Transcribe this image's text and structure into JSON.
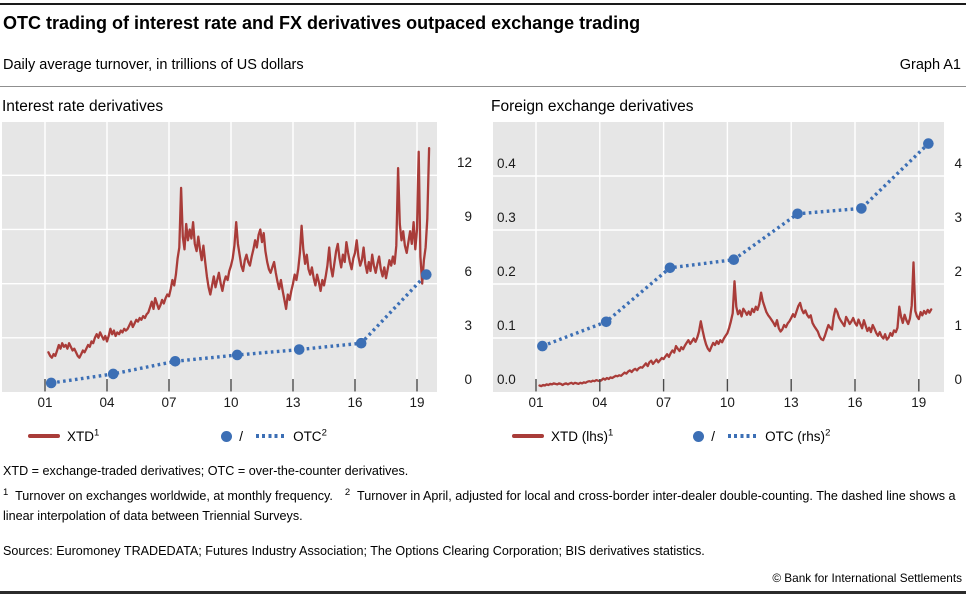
{
  "header": {
    "title": "OTC trading of interest rate and FX derivatives outpaced exchange trading",
    "subtitle": "Daily average turnover, in trillions of US dollars",
    "graph_label": "Graph A1"
  },
  "colors": {
    "red": "#a93c39",
    "blue": "#3c6fb5",
    "plot_bg": "#e6e6e6",
    "grid": "#ffffff",
    "tick": "#4a4a4a"
  },
  "panels": [
    {
      "title": "Interest rate derivatives",
      "legend": {
        "xtd_text": "XTD",
        "xtd_sup": "1",
        "sep": "/",
        "otc_text": "OTC",
        "otc_sup": "2"
      }
    },
    {
      "title": "Foreign exchange derivatives",
      "legend": {
        "xtd_text": "XTD (lhs)",
        "xtd_sup": "1",
        "sep": "/",
        "otc_text": "OTC (rhs)",
        "otc_sup": "2"
      }
    }
  ],
  "footnotes": {
    "abbrev": "XTD = exchange-traded derivatives; OTC = over-the-counter derivatives.",
    "fn1_sup": "1",
    "fn1_text": "Turnover on exchanges worldwide, at monthly frequency.",
    "fn2_sup": "2",
    "fn2_text": "Turnover in April, adjusted for local and cross-border inter-dealer double-counting. The dashed line shows a linear interpolation of data between Triennial Surveys.",
    "sources": "Sources: Euromoney TRADEDATA; Futures Industry Association; The Options Clearing Corporation; BIS derivatives statistics."
  },
  "copyright": "© Bank for International Settlements",
  "chart_data": [
    {
      "type": "line",
      "title": "Interest rate derivatives",
      "ylabel": "USD trillions, daily average turnover",
      "x_ticks": [
        "01",
        "04",
        "07",
        "10",
        "13",
        "16",
        "19"
      ],
      "x_tick_years": [
        2001,
        2004,
        2007,
        2010,
        2013,
        2016,
        2019
      ],
      "x_range": [
        1998.9,
        2020.0
      ],
      "grid": true,
      "y_axis": {
        "side": "right",
        "ticks": [
          0,
          3,
          6,
          9,
          12
        ],
        "tick_labels": [
          "0",
          "3",
          "6",
          "9",
          "12"
        ],
        "lim": [
          0,
          14.95
        ]
      },
      "series": [
        {
          "name": "XTD",
          "style": "solid-line",
          "color": "#a93c39",
          "frequency": "monthly",
          "start_year": 2001.1667,
          "step": 0.083333,
          "values": [
            2.2,
            2.0,
            1.9,
            2.1,
            2.0,
            2.3,
            2.6,
            2.4,
            2.7,
            2.5,
            2.6,
            2.4,
            2.7,
            2.5,
            2.3,
            2.4,
            2.2,
            2.0,
            1.9,
            2.1,
            2.3,
            2.2,
            2.4,
            2.6,
            2.5,
            2.8,
            2.7,
            3.0,
            3.2,
            3.0,
            3.3,
            3.1,
            2.9,
            3.1,
            2.8,
            3.1,
            3.5,
            3.2,
            3.4,
            3.1,
            3.3,
            3.2,
            3.4,
            3.3,
            3.5,
            3.4,
            3.5,
            3.7,
            3.9,
            3.6,
            3.8,
            4.0,
            3.9,
            4.1,
            4.0,
            4.2,
            4.1,
            4.3,
            4.4,
            4.7,
            5.0,
            4.6,
            5.2,
            4.9,
            4.6,
            4.8,
            5.1,
            4.9,
            5.2,
            5.4,
            5.3,
            5.7,
            6.2,
            5.9,
            6.5,
            7.4,
            8.0,
            11.3,
            8.6,
            7.9,
            9.3,
            8.4,
            9.0,
            8.5,
            9.4,
            8.2,
            7.8,
            8.6,
            7.9,
            7.3,
            8.1,
            7.2,
            6.4,
            5.8,
            5.4,
            5.9,
            6.4,
            5.8,
            6.2,
            6.6,
            6.0,
            5.6,
            6.1,
            6.4,
            6.2,
            6.7,
            7.0,
            7.4,
            8.1,
            9.4,
            8.2,
            7.6,
            7.0,
            6.7,
            7.3,
            7.6,
            7.2,
            7.0,
            7.5,
            7.9,
            8.4,
            8.0,
            8.7,
            9.0,
            8.3,
            8.8,
            7.8,
            7.2,
            6.8,
            6.6,
            6.9,
            7.2,
            6.6,
            6.1,
            5.7,
            6.2,
            5.6,
            5.1,
            4.6,
            5.4,
            5.1,
            5.6,
            6.0,
            6.5,
            6.2,
            6.8,
            7.7,
            9.2,
            7.9,
            7.1,
            7.6,
            6.8,
            6.5,
            6.9,
            6.3,
            5.9,
            6.5,
            6.1,
            5.6,
            6.2,
            5.9,
            6.4,
            7.0,
            8.0,
            6.9,
            6.4,
            7.1,
            7.8,
            8.2,
            7.4,
            6.9,
            7.6,
            7.2,
            8.3,
            7.7,
            7.2,
            6.8,
            7.4,
            7.7,
            8.4,
            7.5,
            7.0,
            7.3,
            8.0,
            7.1,
            6.6,
            7.2,
            6.7,
            7.6,
            7.0,
            6.6,
            7.1,
            7.5,
            6.8,
            6.4,
            6.9,
            6.3,
            6.8,
            7.3,
            7.0,
            7.5,
            7.1,
            8.1,
            12.4,
            9.3,
            8.4,
            8.9,
            8.1,
            7.7,
            8.3,
            8.9,
            8.2,
            9.4,
            7.9,
            9.0,
            13.3,
            7.5,
            6.0,
            7.3,
            8.0,
            9.6,
            13.5
          ]
        },
        {
          "name": "OTC",
          "style": "dotted-line-markers",
          "color": "#3c6fb5",
          "survey_years": [
            "2001",
            "2004",
            "2007",
            "2010",
            "2013",
            "2016",
            "2019"
          ],
          "x": [
            2001.3,
            2004.3,
            2007.3,
            2010.3,
            2013.3,
            2016.3,
            2019.45
          ],
          "values": [
            0.5,
            1.0,
            1.7,
            2.05,
            2.35,
            2.7,
            6.5
          ]
        }
      ]
    },
    {
      "type": "line",
      "title": "Foreign exchange derivatives",
      "ylabel": "USD trillions, daily average turnover",
      "x_ticks": [
        "01",
        "04",
        "07",
        "10",
        "13",
        "16",
        "19"
      ],
      "x_tick_years": [
        2001,
        2004,
        2007,
        2010,
        2013,
        2016,
        2019
      ],
      "x_range": [
        1999.0,
        2020.2
      ],
      "grid": true,
      "y_axis_left": {
        "ticks": [
          0,
          0.1,
          0.2,
          0.3,
          0.4
        ],
        "tick_labels": [
          "0.0",
          "0.1",
          "0.2",
          "0.3",
          "0.4"
        ],
        "lim": [
          0,
          0.5
        ],
        "series": "XTD"
      },
      "y_axis_right": {
        "ticks": [
          0,
          1,
          2,
          3,
          4
        ],
        "tick_labels": [
          "0",
          "1",
          "2",
          "3",
          "4"
        ],
        "lim": [
          0,
          5
        ],
        "series": "OTC"
      },
      "series": [
        {
          "name": "XTD (lhs)",
          "style": "solid-line",
          "color": "#a93c39",
          "frequency": "monthly",
          "start_year": 2001.1667,
          "step": 0.083333,
          "values": [
            0.012,
            0.011,
            0.013,
            0.012,
            0.014,
            0.013,
            0.015,
            0.014,
            0.016,
            0.015,
            0.014,
            0.016,
            0.015,
            0.013,
            0.015,
            0.016,
            0.014,
            0.016,
            0.017,
            0.015,
            0.017,
            0.016,
            0.015,
            0.017,
            0.016,
            0.018,
            0.017,
            0.019,
            0.02,
            0.019,
            0.021,
            0.02,
            0.022,
            0.021,
            0.02,
            0.022,
            0.025,
            0.023,
            0.026,
            0.024,
            0.027,
            0.026,
            0.028,
            0.03,
            0.029,
            0.031,
            0.03,
            0.033,
            0.036,
            0.034,
            0.038,
            0.04,
            0.037,
            0.041,
            0.043,
            0.04,
            0.044,
            0.046,
            0.045,
            0.049,
            0.053,
            0.048,
            0.055,
            0.058,
            0.052,
            0.056,
            0.06,
            0.055,
            0.059,
            0.063,
            0.061,
            0.066,
            0.07,
            0.065,
            0.072,
            0.077,
            0.073,
            0.085,
            0.08,
            0.076,
            0.083,
            0.079,
            0.086,
            0.091,
            0.096,
            0.089,
            0.094,
            0.099,
            0.093,
            0.101,
            0.112,
            0.131,
            0.114,
            0.099,
            0.088,
            0.08,
            0.076,
            0.084,
            0.091,
            0.087,
            0.094,
            0.089,
            0.096,
            0.092,
            0.099,
            0.104,
            0.109,
            0.119,
            0.131,
            0.146,
            0.205,
            0.158,
            0.144,
            0.151,
            0.14,
            0.154,
            0.149,
            0.143,
            0.149,
            0.143,
            0.154,
            0.148,
            0.158,
            0.152,
            0.163,
            0.184,
            0.168,
            0.158,
            0.148,
            0.142,
            0.138,
            0.133,
            0.128,
            0.122,
            0.133,
            0.118,
            0.112,
            0.116,
            0.124,
            0.12,
            0.127,
            0.131,
            0.137,
            0.144,
            0.139,
            0.149,
            0.159,
            0.165,
            0.153,
            0.146,
            0.151,
            0.143,
            0.138,
            0.142,
            0.128,
            0.122,
            0.117,
            0.112,
            0.103,
            0.098,
            0.096,
            0.104,
            0.114,
            0.124,
            0.119,
            0.116,
            0.139,
            0.154,
            0.148,
            0.138,
            0.132,
            0.127,
            0.122,
            0.139,
            0.133,
            0.126,
            0.131,
            0.137,
            0.128,
            0.123,
            0.134,
            0.126,
            0.118,
            0.133,
            0.123,
            0.113,
            0.119,
            0.111,
            0.124,
            0.117,
            0.109,
            0.104,
            0.111,
            0.103,
            0.099,
            0.107,
            0.097,
            0.101,
            0.109,
            0.104,
            0.114,
            0.111,
            0.119,
            0.158,
            0.139,
            0.128,
            0.143,
            0.133,
            0.126,
            0.136,
            0.16,
            0.24,
            0.15,
            0.14,
            0.135,
            0.148,
            0.142,
            0.15,
            0.145,
            0.152,
            0.147,
            0.153
          ]
        },
        {
          "name": "OTC (rhs)",
          "style": "dotted-line-markers",
          "color": "#3c6fb5",
          "survey_years": [
            "2001",
            "2004",
            "2007",
            "2010",
            "2013",
            "2016",
            "2019"
          ],
          "x": [
            2001.3,
            2004.3,
            2007.3,
            2010.3,
            2013.3,
            2016.3,
            2019.45
          ],
          "values": [
            0.85,
            1.3,
            2.3,
            2.45,
            3.3,
            3.4,
            4.6
          ]
        }
      ]
    }
  ]
}
